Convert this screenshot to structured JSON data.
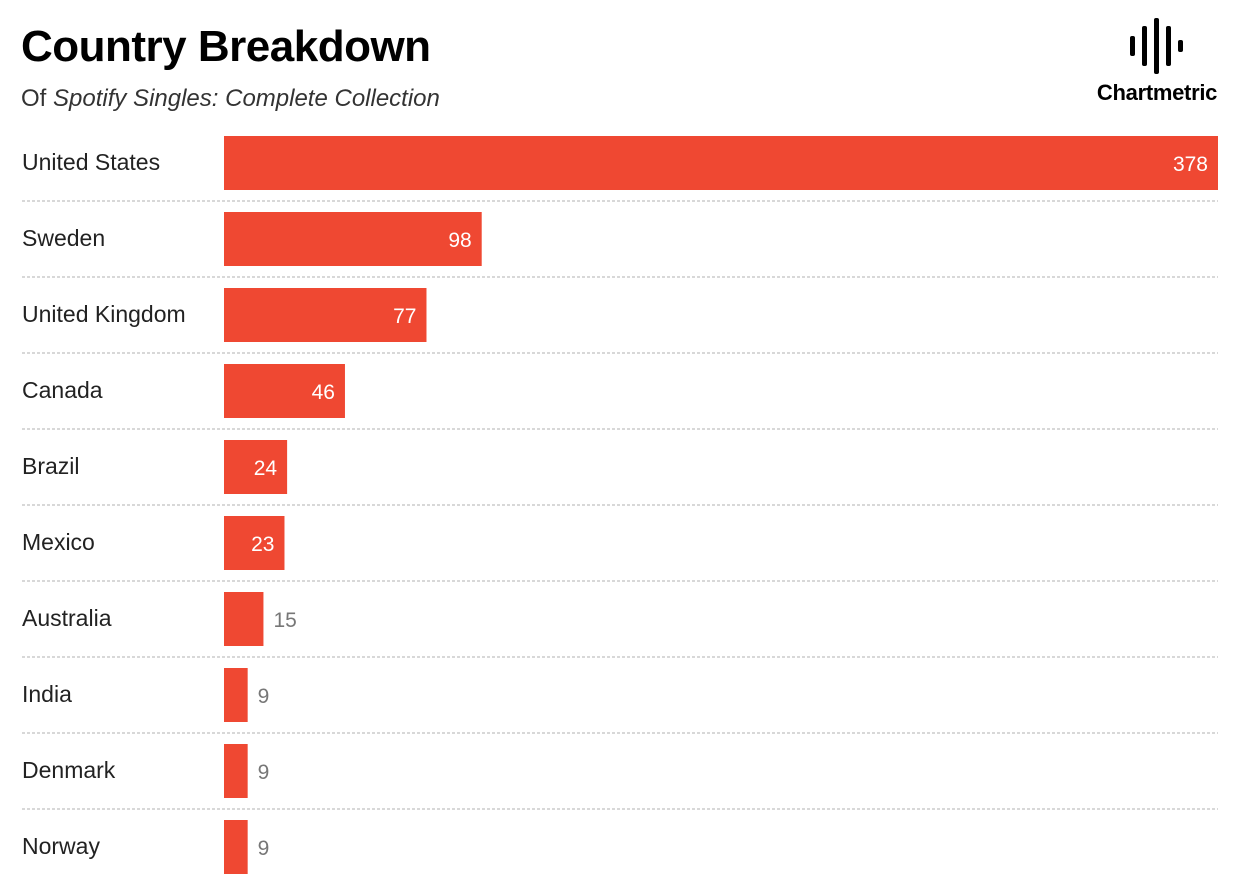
{
  "header": {
    "title": "Country Breakdown",
    "subtitle_prefix": "Of ",
    "subtitle_italic": "Spotify Singles: Complete Collection"
  },
  "logo": {
    "text": "Chartmetric",
    "icon": "sound-wave-icon"
  },
  "colors": {
    "bar": "#EF4832",
    "divider": "#cccccc",
    "label": "#222222"
  },
  "chart_data": {
    "type": "bar",
    "orientation": "horizontal",
    "title": "Country Breakdown",
    "subtitle": "Of Spotify Singles: Complete Collection",
    "categories": [
      "United States",
      "Sweden",
      "United Kingdom",
      "Canada",
      "Brazil",
      "Mexico",
      "Australia",
      "India",
      "Denmark",
      "Norway"
    ],
    "values": [
      378,
      98,
      77,
      46,
      24,
      23,
      15,
      9,
      9,
      9
    ],
    "xlabel": "",
    "ylabel": "",
    "grid": false,
    "data_labels": true
  }
}
